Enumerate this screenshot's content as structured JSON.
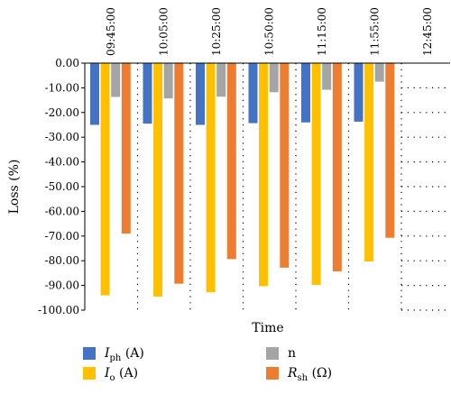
{
  "chart_data": {
    "type": "bar",
    "categories": [
      "09:45:00",
      "10:05:00",
      "10:25:00",
      "10:50:00",
      "11:15:00",
      "11:55:00",
      "12:45:00"
    ],
    "series": [
      {
        "name": "Iph (A)",
        "legend_main": "I",
        "legend_sub": "ph",
        "legend_unit": " (A)",
        "color": "#4472C4",
        "values": [
          -25.0,
          -24.5,
          -25.0,
          -24.3,
          -24.0,
          -23.7,
          null
        ]
      },
      {
        "name": "Io (A)",
        "legend_main": "I",
        "legend_sub": "o",
        "legend_unit": " (A)",
        "color": "#FFC000",
        "values": [
          -94.0,
          -94.5,
          -92.8,
          -90.3,
          -89.8,
          -80.3,
          null
        ]
      },
      {
        "name": "n",
        "legend_main": "n",
        "legend_sub": "",
        "legend_unit": "",
        "color": "#A5A5A5",
        "values": [
          -13.7,
          -14.3,
          -13.6,
          -11.8,
          -10.8,
          -7.5,
          null
        ]
      },
      {
        "name": "Rsh (Ω)",
        "legend_main": "R",
        "legend_sub": "sh",
        "legend_unit": " (Ω)",
        "color": "#ED7D31",
        "values": [
          -69.0,
          -89.3,
          -79.3,
          -82.8,
          -84.3,
          -70.7,
          null
        ]
      }
    ],
    "title": "",
    "xlabel": "Time",
    "ylabel": "Loss (%)",
    "ylim": [
      -100,
      0
    ],
    "yticks": [
      "0.00",
      "-10.00",
      "-20.00",
      "-30.00",
      "-40.00",
      "-50.00",
      "-60.00",
      "-70.00",
      "-80.00",
      "-90.00",
      "-100.00"
    ],
    "grid": "dotted vertical and horizontal",
    "legend_position": "bottom"
  }
}
